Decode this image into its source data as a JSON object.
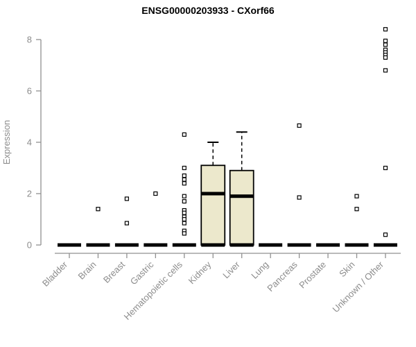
{
  "chart_data": {
    "type": "boxplot",
    "title": "ENSG00000203933 - CXorf66",
    "xlabel": "",
    "ylabel": "Expression",
    "yticks": [
      0,
      2,
      4,
      6,
      8
    ],
    "ylim": [
      0,
      8.6
    ],
    "grid": false,
    "legend": "none",
    "colors": {
      "box_fill": "#ECE8CC",
      "box_stroke": "#000000",
      "axis": "#909090",
      "tick_text": "#8c8c8c",
      "title_text": "#000000",
      "outlier_fill": "#ffffff"
    },
    "categories": [
      "Bladder",
      "Brain",
      "Breast",
      "Gastric",
      "Hematopoietic cells",
      "Kidney",
      "Liver",
      "Lung",
      "Pancreas",
      "Prostate",
      "Skin",
      "Unknown / Other"
    ],
    "boxes": [
      {
        "category": "Bladder",
        "min": 0,
        "q1": 0,
        "median": 0,
        "q3": 0,
        "max": 0,
        "outliers": []
      },
      {
        "category": "Brain",
        "min": 0,
        "q1": 0,
        "median": 0,
        "q3": 0,
        "max": 0,
        "outliers": [
          1.4
        ]
      },
      {
        "category": "Breast",
        "min": 0,
        "q1": 0,
        "median": 0,
        "q3": 0,
        "max": 0,
        "outliers": [
          1.8,
          0.85
        ]
      },
      {
        "category": "Gastric",
        "min": 0,
        "q1": 0,
        "median": 0,
        "q3": 0,
        "max": 0,
        "outliers": [
          2.0
        ]
      },
      {
        "category": "Hematopoietic cells",
        "min": 0,
        "q1": 0,
        "median": 0,
        "q3": 0,
        "max": 0,
        "outliers": [
          4.3,
          3.0,
          2.7,
          2.55,
          2.4,
          1.9,
          1.7,
          1.35,
          1.25,
          1.1,
          1.0,
          0.85,
          0.55,
          0.45
        ]
      },
      {
        "category": "Kidney",
        "min": 0,
        "q1": 0,
        "median": 2.0,
        "q3": 3.1,
        "max": 4.0,
        "outliers": []
      },
      {
        "category": "Liver",
        "min": 0,
        "q1": 0,
        "median": 1.9,
        "q3": 2.9,
        "max": 4.4,
        "outliers": []
      },
      {
        "category": "Lung",
        "min": 0,
        "q1": 0,
        "median": 0,
        "q3": 0,
        "max": 0,
        "outliers": []
      },
      {
        "category": "Pancreas",
        "min": 0,
        "q1": 0,
        "median": 0,
        "q3": 0,
        "max": 0,
        "outliers": [
          4.65,
          1.85
        ]
      },
      {
        "category": "Prostate",
        "min": 0,
        "q1": 0,
        "median": 0,
        "q3": 0,
        "max": 0,
        "outliers": []
      },
      {
        "category": "Skin",
        "min": 0,
        "q1": 0,
        "median": 0,
        "q3": 0,
        "max": 0,
        "outliers": [
          1.9,
          1.4
        ]
      },
      {
        "category": "Unknown / Other",
        "min": 0,
        "q1": 0,
        "median": 0,
        "q3": 0,
        "max": 0,
        "outliers": [
          8.4,
          7.95,
          7.8,
          7.6,
          7.5,
          7.4,
          7.3,
          6.8,
          3.0,
          0.4
        ]
      }
    ]
  }
}
